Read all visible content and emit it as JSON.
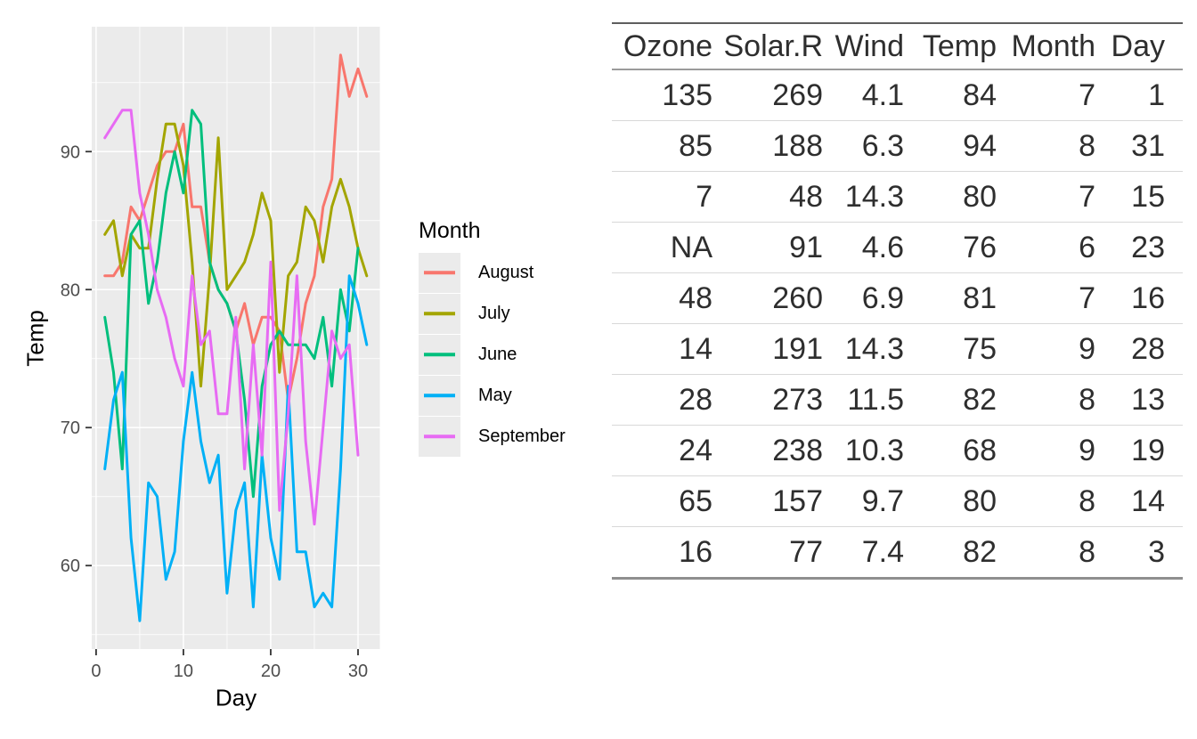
{
  "chart_data": {
    "type": "line",
    "title": "",
    "xlabel": "Day",
    "ylabel": "Temp",
    "legend_title": "Month",
    "legend_position": "right",
    "grid": true,
    "x_ticks": [
      0,
      10,
      20,
      30
    ],
    "x_minor_ticks": [
      5,
      15,
      25
    ],
    "y_ticks": [
      60,
      70,
      80,
      90
    ],
    "y_minor_ticks": [
      55,
      65,
      75,
      85,
      95
    ],
    "xlim": [
      -0.5,
      32.5
    ],
    "ylim": [
      53.95,
      99.05
    ],
    "panel_background": "#EBEBEB",
    "grid_color": "#FFFFFF",
    "tick_color": "#333333",
    "tick_label_color": "#4D4D4D",
    "legend_key_fill": "#EBEBEB",
    "series": [
      {
        "name": "August",
        "color": "#F8766D",
        "x_start": 1,
        "values": [
          81,
          81,
          82,
          86,
          85,
          87,
          89,
          90,
          90,
          92,
          86,
          86,
          82,
          80,
          79,
          77,
          79,
          76,
          78,
          78,
          77,
          72,
          75,
          79,
          81,
          86,
          88,
          97,
          94,
          96,
          94
        ]
      },
      {
        "name": "July",
        "color": "#A3A500",
        "x_start": 1,
        "values": [
          84,
          85,
          81,
          84,
          83,
          83,
          88,
          92,
          92,
          89,
          82,
          73,
          81,
          91,
          80,
          81,
          82,
          84,
          87,
          85,
          74,
          81,
          82,
          86,
          85,
          82,
          86,
          88,
          86,
          83,
          81
        ]
      },
      {
        "name": "June",
        "color": "#00BF7D",
        "x_start": 1,
        "values": [
          78,
          74,
          67,
          84,
          85,
          79,
          82,
          87,
          90,
          87,
          93,
          92,
          82,
          80,
          79,
          77,
          72,
          65,
          73,
          76,
          77,
          76,
          76,
          76,
          75,
          78,
          73,
          80,
          77,
          83
        ]
      },
      {
        "name": "May",
        "color": "#00B0F6",
        "x_start": 1,
        "values": [
          67,
          72,
          74,
          62,
          56,
          66,
          65,
          59,
          61,
          69,
          74,
          69,
          66,
          68,
          58,
          64,
          66,
          57,
          68,
          62,
          59,
          73,
          61,
          61,
          57,
          58,
          57,
          67,
          81,
          79,
          76
        ]
      },
      {
        "name": "September",
        "color": "#E76BF3",
        "x_start": 1,
        "values": [
          91,
          92,
          93,
          93,
          87,
          84,
          80,
          78,
          75,
          73,
          81,
          76,
          77,
          71,
          71,
          78,
          67,
          76,
          68,
          82,
          64,
          71,
          81,
          69,
          63,
          70,
          77,
          75,
          76,
          68
        ]
      }
    ]
  },
  "table": {
    "headers": [
      "Ozone",
      "Solar.R",
      "Wind",
      "Temp",
      "Month",
      "Day"
    ],
    "rows": [
      [
        "135",
        "269",
        "4.1",
        "84",
        "7",
        "1"
      ],
      [
        "85",
        "188",
        "6.3",
        "94",
        "8",
        "31"
      ],
      [
        "7",
        "48",
        "14.3",
        "80",
        "7",
        "15"
      ],
      [
        "NA",
        "91",
        "4.6",
        "76",
        "6",
        "23"
      ],
      [
        "48",
        "260",
        "6.9",
        "81",
        "7",
        "16"
      ],
      [
        "14",
        "191",
        "14.3",
        "75",
        "9",
        "28"
      ],
      [
        "28",
        "273",
        "11.5",
        "82",
        "8",
        "13"
      ],
      [
        "24",
        "238",
        "10.3",
        "68",
        "9",
        "19"
      ],
      [
        "65",
        "157",
        "9.7",
        "80",
        "8",
        "14"
      ],
      [
        "16",
        "77",
        "7.4",
        "82",
        "8",
        "3"
      ]
    ]
  }
}
